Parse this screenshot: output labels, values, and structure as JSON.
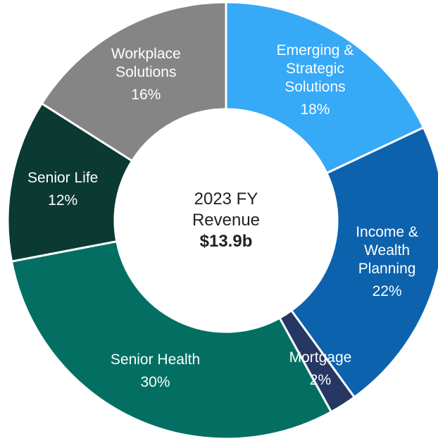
{
  "chart_data": {
    "type": "donut",
    "title": "2023 FY Revenue",
    "subtitle": "$13.9b",
    "categories": [
      "Emerging & Strategic Solutions",
      "Income & Wealth Planning",
      "Mortgage",
      "Senior Health",
      "Senior Life",
      "Workplace Solutions"
    ],
    "values": [
      18,
      22,
      2,
      30,
      12,
      16
    ],
    "value_labels": [
      "18%",
      "22%",
      "2%",
      "30%",
      "12%",
      "16%"
    ],
    "colors": [
      "#36a9f7",
      "#0d62ae",
      "#253762",
      "#036f63",
      "#0b3a33",
      "#858585"
    ]
  }
}
